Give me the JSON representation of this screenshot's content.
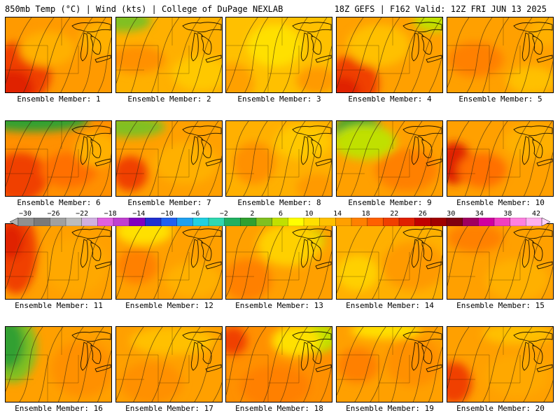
{
  "header": {
    "left_title": "850mb Temp (°C) | Wind (kts) | College of DuPage NEXLAB",
    "right_title": "18Z GEFS | F162 Valid: 12Z FRI JUN 13 2025"
  },
  "colorbar": {
    "labels": [
      "−30",
      "−26",
      "−22",
      "−18",
      "−14",
      "−10",
      "−6",
      "−2",
      "2",
      "6",
      "10",
      "14",
      "18",
      "22",
      "26",
      "30",
      "34",
      "38",
      "42"
    ],
    "colors": [
      "#909090",
      "#7a7a7a",
      "#a0a0a0",
      "#bcbcbc",
      "#d0b0e0",
      "#e060e0",
      "#c040d0",
      "#8000c0",
      "#2030d0",
      "#2060f0",
      "#20a0f0",
      "#20d0e0",
      "#30d8b0",
      "#20b060",
      "#30a030",
      "#80c020",
      "#c0e000",
      "#ffff00",
      "#ffe000",
      "#ffc000",
      "#ffa000",
      "#ff8000",
      "#ff6000",
      "#f04000",
      "#e02000",
      "#c00000",
      "#a00000",
      "#800010",
      "#a00060",
      "#d000a0",
      "#f040c0",
      "#ff80e0",
      "#ffb0f0"
    ]
  },
  "panels": [
    {
      "label": "Ensemble Member: 1",
      "bg": "#ff9a00",
      "blobs": [
        {
          "cx": 20,
          "cy": 80,
          "rx": 45,
          "ry": 45,
          "c": "#f04000"
        },
        {
          "cx": 10,
          "cy": 100,
          "rx": 30,
          "ry": 25,
          "c": "#e02000"
        },
        {
          "cx": 60,
          "cy": 45,
          "rx": 40,
          "ry": 25,
          "c": "#ffb000"
        },
        {
          "cx": 140,
          "cy": 30,
          "rx": 35,
          "ry": 25,
          "c": "#ffb000"
        }
      ]
    },
    {
      "label": "Ensemble Member: 2",
      "bg": "#ffb000",
      "blobs": [
        {
          "cx": 10,
          "cy": 5,
          "rx": 40,
          "ry": 15,
          "c": "#80c020"
        },
        {
          "cx": 30,
          "cy": 60,
          "rx": 40,
          "ry": 20,
          "c": "#ff9000"
        },
        {
          "cx": 120,
          "cy": 80,
          "rx": 40,
          "ry": 25,
          "c": "#ffc800"
        }
      ]
    },
    {
      "label": "Ensemble Member: 3",
      "bg": "#ffc000",
      "blobs": [
        {
          "cx": 70,
          "cy": 40,
          "rx": 40,
          "ry": 30,
          "c": "#ffe000"
        },
        {
          "cx": 10,
          "cy": 95,
          "rx": 30,
          "ry": 30,
          "c": "#ffa000"
        },
        {
          "cx": 130,
          "cy": 90,
          "rx": 30,
          "ry": 20,
          "c": "#ff9a00"
        }
      ]
    },
    {
      "label": "Ensemble Member: 4",
      "bg": "#ffa000",
      "blobs": [
        {
          "cx": 20,
          "cy": 95,
          "rx": 40,
          "ry": 40,
          "c": "#f04000"
        },
        {
          "cx": 8,
          "cy": 105,
          "rx": 25,
          "ry": 20,
          "c": "#e02000"
        },
        {
          "cx": 60,
          "cy": 40,
          "rx": 45,
          "ry": 30,
          "c": "#ffc000"
        },
        {
          "cx": 140,
          "cy": 5,
          "rx": 30,
          "ry": 15,
          "c": "#c0e000"
        }
      ]
    },
    {
      "label": "Ensemble Member: 5",
      "bg": "#ffa000",
      "blobs": [
        {
          "cx": 40,
          "cy": 60,
          "rx": 40,
          "ry": 25,
          "c": "#ff8000"
        },
        {
          "cx": 120,
          "cy": 90,
          "rx": 35,
          "ry": 20,
          "c": "#ffc000"
        },
        {
          "cx": 140,
          "cy": 20,
          "rx": 25,
          "ry": 20,
          "c": "#ffb000"
        }
      ]
    },
    {
      "label": "Ensemble Member: 6",
      "bg": "#ff9000",
      "blobs": [
        {
          "cx": 40,
          "cy": 0,
          "rx": 80,
          "ry": 15,
          "c": "#30a030"
        },
        {
          "cx": 20,
          "cy": 80,
          "rx": 40,
          "ry": 35,
          "c": "#f04000"
        },
        {
          "cx": 90,
          "cy": 70,
          "rx": 40,
          "ry": 25,
          "c": "#ff7000"
        },
        {
          "cx": 130,
          "cy": 40,
          "rx": 30,
          "ry": 25,
          "c": "#ffb000"
        }
      ]
    },
    {
      "label": "Ensemble Member: 7",
      "bg": "#ffa000",
      "blobs": [
        {
          "cx": 20,
          "cy": 8,
          "rx": 50,
          "ry": 15,
          "c": "#80c020"
        },
        {
          "cx": 20,
          "cy": 75,
          "rx": 25,
          "ry": 25,
          "c": "#f04000"
        },
        {
          "cx": 100,
          "cy": 60,
          "rx": 45,
          "ry": 30,
          "c": "#ffb000"
        }
      ]
    },
    {
      "label": "Ensemble Member: 8",
      "bg": "#ffb000",
      "blobs": [
        {
          "cx": 40,
          "cy": 60,
          "rx": 30,
          "ry": 30,
          "c": "#ff9000"
        },
        {
          "cx": 110,
          "cy": 30,
          "rx": 40,
          "ry": 25,
          "c": "#ffc800"
        },
        {
          "cx": 130,
          "cy": 95,
          "rx": 30,
          "ry": 20,
          "c": "#ff9a00"
        }
      ]
    },
    {
      "label": "Ensemble Member: 9",
      "bg": "#ffa000",
      "blobs": [
        {
          "cx": 30,
          "cy": 15,
          "rx": 35,
          "ry": 25,
          "c": "#30a030"
        },
        {
          "cx": 40,
          "cy": 30,
          "rx": 45,
          "ry": 25,
          "c": "#c0e000"
        },
        {
          "cx": 100,
          "cy": 70,
          "rx": 45,
          "ry": 30,
          "c": "#ff8000"
        }
      ]
    },
    {
      "label": "Ensemble Member: 10",
      "bg": "#ffa000",
      "blobs": [
        {
          "cx": 10,
          "cy": 60,
          "rx": 25,
          "ry": 30,
          "c": "#e02000"
        },
        {
          "cx": 50,
          "cy": 70,
          "rx": 35,
          "ry": 25,
          "c": "#ff7000"
        },
        {
          "cx": 120,
          "cy": 30,
          "rx": 40,
          "ry": 25,
          "c": "#ffb000"
        }
      ]
    },
    {
      "label": "Ensemble Member: 11",
      "bg": "#ffa000",
      "blobs": [
        {
          "cx": 15,
          "cy": 40,
          "rx": 30,
          "ry": 60,
          "c": "#f04000"
        },
        {
          "cx": 8,
          "cy": 25,
          "rx": 18,
          "ry": 25,
          "c": "#e02000"
        },
        {
          "cx": 100,
          "cy": 60,
          "rx": 45,
          "ry": 40,
          "c": "#ffa800"
        }
      ]
    },
    {
      "label": "Ensemble Member: 12",
      "bg": "#ffa000",
      "blobs": [
        {
          "cx": 40,
          "cy": 10,
          "rx": 40,
          "ry": 20,
          "c": "#ffe000"
        },
        {
          "cx": 30,
          "cy": 60,
          "rx": 30,
          "ry": 25,
          "c": "#ff8000"
        },
        {
          "cx": 110,
          "cy": 80,
          "rx": 40,
          "ry": 25,
          "c": "#ffb000"
        }
      ]
    },
    {
      "label": "Ensemble Member: 13",
      "bg": "#ffa000",
      "blobs": [
        {
          "cx": 110,
          "cy": 25,
          "rx": 30,
          "ry": 22,
          "c": "#c0e000"
        },
        {
          "cx": 90,
          "cy": 30,
          "rx": 45,
          "ry": 30,
          "c": "#ffd000"
        },
        {
          "cx": 30,
          "cy": 80,
          "rx": 35,
          "ry": 30,
          "c": "#ff8000"
        }
      ]
    },
    {
      "label": "Ensemble Member: 14",
      "bg": "#ffb000",
      "blobs": [
        {
          "cx": 30,
          "cy": 70,
          "rx": 30,
          "ry": 25,
          "c": "#ffd000"
        },
        {
          "cx": 110,
          "cy": 60,
          "rx": 45,
          "ry": 35,
          "c": "#ff9a00"
        }
      ]
    },
    {
      "label": "Ensemble Member: 15",
      "bg": "#ffa000",
      "blobs": [
        {
          "cx": 40,
          "cy": 20,
          "rx": 40,
          "ry": 20,
          "c": "#ff8000"
        },
        {
          "cx": 100,
          "cy": 80,
          "rx": 45,
          "ry": 30,
          "c": "#ffb000"
        }
      ]
    },
    {
      "label": "Ensemble Member: 16",
      "bg": "#ffa000",
      "blobs": [
        {
          "cx": 10,
          "cy": 30,
          "rx": 35,
          "ry": 50,
          "c": "#80c020"
        },
        {
          "cx": 5,
          "cy": 25,
          "rx": 22,
          "ry": 35,
          "c": "#30a030"
        },
        {
          "cx": 110,
          "cy": 60,
          "rx": 45,
          "ry": 40,
          "c": "#ff9000"
        }
      ]
    },
    {
      "label": "Ensemble Member: 17",
      "bg": "#ffa000",
      "blobs": [
        {
          "cx": 80,
          "cy": 20,
          "rx": 60,
          "ry": 20,
          "c": "#ffc000"
        },
        {
          "cx": 50,
          "cy": 80,
          "rx": 45,
          "ry": 30,
          "c": "#ff9000"
        }
      ]
    },
    {
      "label": "Ensemble Member: 18",
      "bg": "#ff9000",
      "blobs": [
        {
          "cx": 10,
          "cy": 20,
          "rx": 20,
          "ry": 20,
          "c": "#f04000"
        },
        {
          "cx": 130,
          "cy": 15,
          "rx": 30,
          "ry": 22,
          "c": "#c0e000"
        },
        {
          "cx": 100,
          "cy": 20,
          "rx": 35,
          "ry": 22,
          "c": "#ffe000"
        },
        {
          "cx": 70,
          "cy": 85,
          "rx": 50,
          "ry": 30,
          "c": "#ff8000"
        }
      ]
    },
    {
      "label": "Ensemble Member: 19",
      "bg": "#ffa000",
      "blobs": [
        {
          "cx": 70,
          "cy": 5,
          "rx": 50,
          "ry": 12,
          "c": "#ffe000"
        },
        {
          "cx": 30,
          "cy": 55,
          "rx": 30,
          "ry": 25,
          "c": "#ff8000"
        },
        {
          "cx": 110,
          "cy": 50,
          "rx": 40,
          "ry": 35,
          "c": "#ff9000"
        }
      ]
    },
    {
      "label": "Ensemble Member: 20",
      "bg": "#ffa000",
      "blobs": [
        {
          "cx": 10,
          "cy": 80,
          "rx": 25,
          "ry": 30,
          "c": "#f04000"
        },
        {
          "cx": 100,
          "cy": 10,
          "rx": 50,
          "ry": 15,
          "c": "#ffc000"
        },
        {
          "cx": 100,
          "cy": 70,
          "rx": 45,
          "ry": 30,
          "c": "#ffa800"
        }
      ]
    }
  ]
}
